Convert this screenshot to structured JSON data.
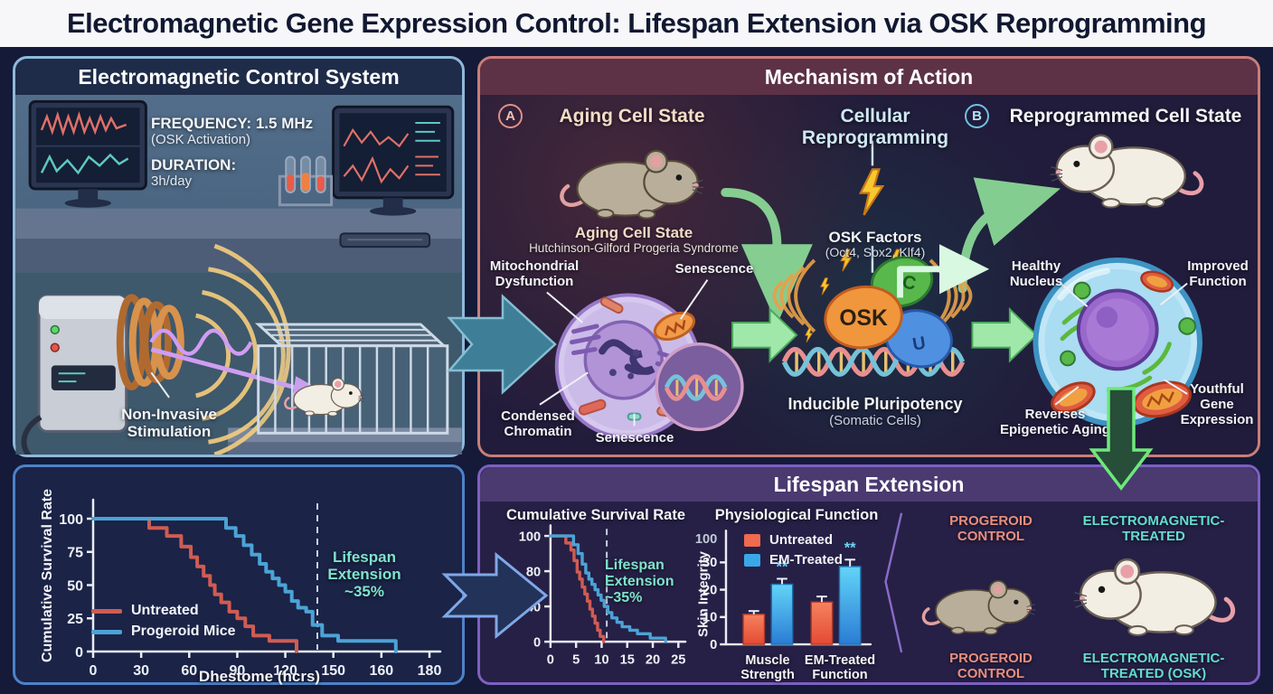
{
  "title": "Electromagnetic Gene Expression Control: Lifespan Extension via OSK Reprogramming",
  "colors": {
    "untreated_red": "#d05c52",
    "treated_blue": "#4ba3d6",
    "annotation_teal": "#7fe3cc",
    "arrow_green": "#8fe09a",
    "em_wave_orange": "#f5cd7d",
    "progeroid_label": "#e98e7e",
    "em_treated_label": "#63dcd0"
  },
  "em_panel": {
    "header": "Electromagnetic Control System",
    "frequency_title": "FREQUENCY: 1.5 MHz",
    "frequency_sub": "(OSK Activation)",
    "duration_title": "DURATION:",
    "duration_value": "3h/day",
    "noninvasive_label": "Non-Invasive\nStimulation"
  },
  "mechanism_panel": {
    "header": "Mechanism of Action",
    "badge_a": "A",
    "badge_b": "B",
    "aging_title": "Aging Cell State",
    "reprogramming_title": "Cellular Reprogramming",
    "reprogrammed_title": "Reprogrammed Cell State",
    "aging_mouse_caption": "Aging Cell State",
    "aging_mouse_subcaption": "Hutchinson-Gilford Progeria Syndrome",
    "label_mitochondrial": "Mitochondrial\nDysfunction",
    "label_senescence_top": "Senescence",
    "label_condensed_chromatin": "Condensed\nChromatin",
    "label_senescence_bottom": "Senescence",
    "osk_factors_title": "OSK Factors",
    "osk_factors_sub": "(Oct4, Sox2, Klf4)",
    "osk_blob_label": "OSK",
    "osk_green_glyph": "C",
    "osk_blue_glyph": "U",
    "pluripotency_title": "Inducible Pluripotency",
    "pluripotency_sub": "(Somatic Cells)",
    "label_healthy_nucleus": "Healthy\nNucleus",
    "label_improved_function": "Improved\nFunction",
    "label_reverses": "Reverses\nEpigenetic Aging",
    "label_youthful": "Youthful\nGene\nExpression"
  },
  "lifespan_panel": {
    "header": "Lifespan Extension",
    "mice_top_left": "PROGEROID\nCONTROL",
    "mice_top_right": "ELECTROMAGNETIC-\nTREATED",
    "mice_bottom_left": "PROGEROID\nCONTROL",
    "mice_bottom_right": "ELECTROMAGNETIC-\nTREATED (OSK)"
  },
  "chart_data": [
    {
      "type": "line",
      "title": "",
      "xlabel": "Dhestome (hcrs)",
      "ylabel": "Cumulative Survival Rate",
      "xticks": [
        0,
        30,
        60,
        90,
        120,
        150,
        160,
        180
      ],
      "yticks": [
        0,
        25,
        50,
        75,
        100
      ],
      "ylim": [
        0,
        100
      ],
      "grid": false,
      "legend_position": "inside lower-left",
      "dashed_line_x": 140,
      "annotation": "Lifespan\nExtension\n~35%",
      "series": [
        {
          "name": "Untreated",
          "color": "#d05c52",
          "points": [
            [
              0,
              100
            ],
            [
              35,
              100
            ],
            [
              35,
              93
            ],
            [
              46,
              93
            ],
            [
              46,
              87
            ],
            [
              55,
              87
            ],
            [
              55,
              79
            ],
            [
              61,
              79
            ],
            [
              61,
              71
            ],
            [
              65,
              71
            ],
            [
              65,
              64
            ],
            [
              69,
              64
            ],
            [
              69,
              57
            ],
            [
              73,
              57
            ],
            [
              73,
              50
            ],
            [
              76,
              50
            ],
            [
              76,
              43
            ],
            [
              80,
              43
            ],
            [
              80,
              37
            ],
            [
              85,
              37
            ],
            [
              85,
              30
            ],
            [
              90,
              30
            ],
            [
              90,
              25
            ],
            [
              95,
              25
            ],
            [
              95,
              19
            ],
            [
              100,
              19
            ],
            [
              100,
              12
            ],
            [
              110,
              12
            ],
            [
              110,
              8
            ],
            [
              127,
              8
            ],
            [
              127,
              0
            ]
          ]
        },
        {
          "name": "Progeroid Mice",
          "color": "#4ba3d6",
          "points": [
            [
              0,
              100
            ],
            [
              83,
              100
            ],
            [
              83,
              93
            ],
            [
              89,
              93
            ],
            [
              89,
              87
            ],
            [
              94,
              87
            ],
            [
              94,
              80
            ],
            [
              99,
              80
            ],
            [
              99,
              73
            ],
            [
              104,
              73
            ],
            [
              104,
              66
            ],
            [
              108,
              66
            ],
            [
              108,
              60
            ],
            [
              112,
              60
            ],
            [
              112,
              55
            ],
            [
              116,
              55
            ],
            [
              116,
              50
            ],
            [
              120,
              50
            ],
            [
              120,
              45
            ],
            [
              124,
              45
            ],
            [
              124,
              38
            ],
            [
              128,
              38
            ],
            [
              128,
              33
            ],
            [
              133,
              33
            ],
            [
              133,
              30
            ],
            [
              137,
              30
            ],
            [
              137,
              20
            ],
            [
              143,
              20
            ],
            [
              143,
              12
            ],
            [
              151,
              12
            ],
            [
              151,
              8
            ],
            [
              166,
              8
            ],
            [
              166,
              0
            ]
          ]
        }
      ]
    },
    {
      "type": "line",
      "title": "Cumulative Survival Rate",
      "xlabel": "",
      "ylabel": "",
      "xticks": [
        0,
        5,
        10,
        15,
        20,
        25
      ],
      "yticks": [
        0,
        40,
        80,
        100
      ],
      "ylim": [
        0,
        100
      ],
      "grid": false,
      "dashed_line_x": 11,
      "annotation": "Lifespan\nExtension\n~35%",
      "series": [
        {
          "name": "Untreated",
          "color": "#d05c52",
          "points": [
            [
              0,
              100
            ],
            [
              3,
              100
            ],
            [
              3,
              96
            ],
            [
              4,
              96
            ],
            [
              4,
              92
            ],
            [
              4.6,
              92
            ],
            [
              4.6,
              86
            ],
            [
              5.2,
              86
            ],
            [
              5.2,
              79
            ],
            [
              5.7,
              79
            ],
            [
              5.7,
              71
            ],
            [
              6.2,
              71
            ],
            [
              6.2,
              62
            ],
            [
              6.7,
              62
            ],
            [
              6.7,
              54
            ],
            [
              7.2,
              54
            ],
            [
              7.2,
              46
            ],
            [
              7.7,
              46
            ],
            [
              7.7,
              37
            ],
            [
              8.2,
              37
            ],
            [
              8.2,
              29
            ],
            [
              8.7,
              29
            ],
            [
              8.7,
              21
            ],
            [
              9.2,
              21
            ],
            [
              9.2,
              13
            ],
            [
              9.7,
              13
            ],
            [
              9.7,
              6
            ],
            [
              10.4,
              6
            ],
            [
              10.4,
              0
            ]
          ]
        },
        {
          "name": "EM-Treated",
          "color": "#4ba3d6",
          "points": [
            [
              0,
              100
            ],
            [
              4.5,
              100
            ],
            [
              4.5,
              95
            ],
            [
              5.4,
              95
            ],
            [
              5.4,
              90
            ],
            [
              6.2,
              90
            ],
            [
              6.2,
              84
            ],
            [
              6.9,
              84
            ],
            [
              6.9,
              78
            ],
            [
              7.5,
              78
            ],
            [
              7.5,
              71
            ],
            [
              8.1,
              71
            ],
            [
              8.1,
              65
            ],
            [
              8.7,
              65
            ],
            [
              8.7,
              59
            ],
            [
              9.3,
              59
            ],
            [
              9.3,
              53
            ],
            [
              9.9,
              53
            ],
            [
              9.9,
              47
            ],
            [
              10.5,
              47
            ],
            [
              10.5,
              40
            ],
            [
              11.2,
              40
            ],
            [
              11.2,
              33
            ],
            [
              12,
              33
            ],
            [
              12,
              27
            ],
            [
              13,
              27
            ],
            [
              13,
              22
            ],
            [
              14,
              22
            ],
            [
              14,
              17
            ],
            [
              15.5,
              17
            ],
            [
              15.5,
              13
            ],
            [
              17,
              13
            ],
            [
              17,
              9
            ],
            [
              19.5,
              9
            ],
            [
              19.5,
              4
            ],
            [
              22.5,
              4
            ],
            [
              22.5,
              0
            ]
          ]
        }
      ]
    },
    {
      "type": "bar",
      "title": "Physiological Function",
      "ylabel": "Skin Integrity",
      "yticks": [
        0,
        10,
        20,
        30
      ],
      "ytop_artifact_label": "100",
      "categories": [
        "Muscle\nStrength",
        "EM-Treated\nFunction"
      ],
      "series": [
        {
          "name": "Untreated",
          "color": "#ee6a50",
          "values": [
            11,
            15.5
          ],
          "errors": [
            1.2,
            2
          ]
        },
        {
          "name": "EM-Treated",
          "color": "#3aa8e8",
          "values": [
            22,
            28.5
          ],
          "errors": [
            2,
            2.5
          ]
        }
      ],
      "significance": [
        "**",
        "**"
      ]
    }
  ]
}
